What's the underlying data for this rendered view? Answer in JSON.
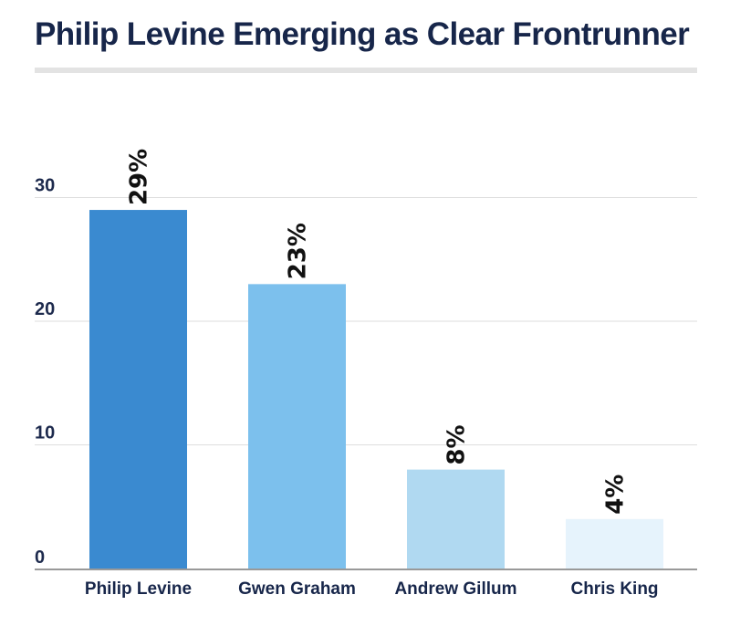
{
  "title": "Philip Levine Emerging as Clear Frontrunner",
  "chart_data": {
    "type": "bar",
    "title": "Philip Levine Emerging as Clear Frontrunner",
    "categories": [
      "Philip Levine",
      "Gwen Graham",
      "Andrew Gillum",
      "Chris King"
    ],
    "values": [
      29,
      23,
      8,
      4
    ],
    "data_labels": [
      "29%",
      "23%",
      "8%",
      "4%"
    ],
    "colors": [
      "#3a8ad0",
      "#7cc0ed",
      "#b0d9f1",
      "#e6f3fc"
    ],
    "xlabel": "",
    "ylabel": "",
    "ylim": [
      0,
      33
    ],
    "yticks": [
      0,
      10,
      20,
      30
    ],
    "grid": true,
    "legend": "none"
  }
}
